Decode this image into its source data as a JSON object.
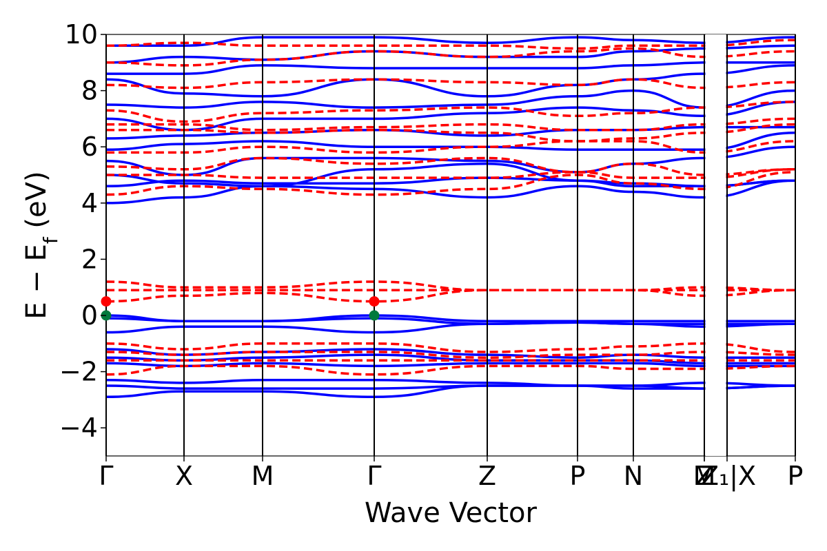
{
  "chart_data": {
    "type": "line",
    "xlabel": "Wave Vector",
    "ylabel": "E − E",
    "ylabel_sub": "f",
    "ylabel_unit": " (eV)",
    "ylim": [
      -5,
      10
    ],
    "yticks": [
      "−4",
      "−2",
      "0",
      "2",
      "4",
      "6",
      "8",
      "10"
    ],
    "ytick_values": [
      -4,
      -2,
      0,
      2,
      4,
      6,
      8,
      10
    ],
    "kpath": {
      "labels": [
        "Γ",
        "X",
        "M",
        "Γ",
        "Z",
        "P",
        "N",
        "Z",
        "M",
        "X",
        "P"
      ],
      "overlap_labels": [
        {
          "text": "Z₁|X",
          "at": 9
        }
      ],
      "positions": [
        0,
        0.113,
        0.227,
        0.389,
        0.553,
        0.684,
        0.765,
        0.868,
        0.868,
        0.901,
        1.0
      ],
      "break_after_index": 8
    },
    "series": [
      {
        "style": "solid",
        "color": "#0000ff"
      },
      {
        "style": "dashed",
        "color": "#ff0000"
      }
    ],
    "markers": [
      {
        "x": 0,
        "y": 0.5,
        "color": "#ff0000"
      },
      {
        "x": 0.389,
        "y": 0.5,
        "color": "#ff0000"
      },
      {
        "x": 0,
        "y": 0.0,
        "color": "#007a3d"
      },
      {
        "x": 0.389,
        "y": 0.0,
        "color": "#007a3d"
      }
    ],
    "blue_bands": [
      {
        "ys": [
          4.0,
          4.2,
          4.6,
          4.5,
          4.2,
          4.6,
          4.4,
          4.2,
          4.8
        ]
      },
      {
        "ys": [
          4.6,
          4.8,
          4.7,
          4.7,
          4.9,
          4.8,
          4.6,
          4.6,
          4.8
        ]
      },
      {
        "ys": [
          5.0,
          4.7,
          4.6,
          5.2,
          5.4,
          4.8,
          4.7,
          4.6,
          4.8
        ]
      },
      {
        "ys": [
          5.5,
          5.0,
          5.6,
          5.6,
          5.5,
          5.1,
          5.4,
          5.6,
          6.0
        ]
      },
      {
        "ys": [
          5.9,
          6.1,
          6.2,
          6.0,
          6.0,
          5.9,
          5.9,
          5.9,
          6.5
        ]
      },
      {
        "ys": [
          6.3,
          6.4,
          6.5,
          6.6,
          6.4,
          6.6,
          6.6,
          6.7,
          6.7
        ]
      },
      {
        "ys": [
          7.0,
          6.6,
          7.0,
          7.0,
          7.2,
          7.4,
          7.3,
          7.1,
          7.6
        ]
      },
      {
        "ys": [
          7.5,
          7.4,
          7.6,
          7.4,
          7.5,
          7.8,
          8.0,
          7.4,
          8.0
        ]
      },
      {
        "ys": [
          8.4,
          7.9,
          7.8,
          8.4,
          7.8,
          8.2,
          8.4,
          8.6,
          8.9
        ]
      },
      {
        "ys": [
          8.6,
          8.6,
          8.9,
          8.8,
          8.8,
          8.8,
          8.9,
          9.0,
          9.0
        ]
      },
      {
        "ys": [
          9.0,
          9.2,
          9.1,
          9.4,
          9.2,
          9.2,
          9.4,
          9.5,
          9.6
        ]
      },
      {
        "ys": [
          9.6,
          9.6,
          9.9,
          9.9,
          9.7,
          9.9,
          9.8,
          9.7,
          9.9
        ]
      },
      {
        "ys": [
          0.0,
          -0.2,
          -0.2,
          0.0,
          -0.2,
          -0.2,
          -0.2,
          -0.2,
          -0.2
        ]
      },
      {
        "ys": [
          -0.1,
          -0.2,
          -0.2,
          -0.1,
          -0.3,
          -0.25,
          -0.3,
          -0.3,
          -0.3
        ]
      },
      {
        "ys": [
          -0.6,
          -0.4,
          -0.4,
          -0.6,
          -0.3,
          -0.25,
          -0.3,
          -0.4,
          -0.3
        ]
      },
      {
        "ys": [
          -1.2,
          -1.4,
          -1.3,
          -1.2,
          -1.4,
          -1.5,
          -1.4,
          -1.5,
          -1.5
        ]
      },
      {
        "ys": [
          -1.5,
          -1.6,
          -1.5,
          -1.4,
          -1.6,
          -1.6,
          -1.6,
          -1.7,
          -1.7
        ]
      },
      {
        "ys": [
          -1.7,
          -1.8,
          -1.7,
          -1.8,
          -1.7,
          -1.7,
          -1.7,
          -1.8,
          -1.8
        ]
      },
      {
        "ys": [
          -2.3,
          -2.4,
          -2.3,
          -2.3,
          -2.4,
          -2.5,
          -2.5,
          -2.4,
          -2.5
        ]
      },
      {
        "ys": [
          -2.5,
          -2.6,
          -2.6,
          -2.6,
          -2.5,
          -2.5,
          -2.5,
          -2.6,
          -2.5
        ]
      },
      {
        "ys": [
          -2.9,
          -2.7,
          -2.7,
          -2.9,
          -2.5,
          -2.5,
          -2.6,
          -2.6,
          -2.5
        ]
      }
    ],
    "red_bands": [
      {
        "ys": [
          4.3,
          4.6,
          4.5,
          4.3,
          4.5,
          5.0,
          4.7,
          4.5,
          5.1
        ]
      },
      {
        "ys": [
          5.0,
          5.0,
          4.9,
          4.9,
          4.9,
          5.1,
          4.9,
          4.9,
          5.2
        ]
      },
      {
        "ys": [
          5.3,
          5.2,
          5.6,
          5.4,
          5.6,
          5.1,
          5.4,
          5.0,
          5.2
        ]
      },
      {
        "ys": [
          5.8,
          5.8,
          6.0,
          5.8,
          6.0,
          6.2,
          6.2,
          5.8,
          6.2
        ]
      },
      {
        "ys": [
          6.6,
          6.6,
          6.5,
          6.6,
          6.5,
          6.2,
          6.3,
          6.5,
          6.8
        ]
      },
      {
        "ys": [
          6.8,
          6.8,
          6.6,
          6.7,
          6.8,
          6.6,
          6.6,
          6.8,
          7.0
        ]
      },
      {
        "ys": [
          7.3,
          6.9,
          7.2,
          7.3,
          7.4,
          7.1,
          7.2,
          7.4,
          7.6
        ]
      },
      {
        "ys": [
          8.2,
          8.1,
          8.3,
          8.4,
          8.3,
          8.2,
          8.4,
          8.1,
          8.3
        ]
      },
      {
        "ys": [
          9.0,
          8.9,
          9.1,
          9.4,
          9.2,
          9.4,
          9.5,
          9.2,
          9.4
        ]
      },
      {
        "ys": [
          9.6,
          9.7,
          9.6,
          9.6,
          9.6,
          9.5,
          9.6,
          9.6,
          9.8
        ]
      },
      {
        "ys": [
          0.5,
          0.7,
          0.8,
          0.5,
          0.9,
          0.9,
          0.9,
          0.7,
          0.9
        ]
      },
      {
        "ys": [
          0.9,
          0.9,
          0.9,
          0.9,
          0.9,
          0.9,
          0.9,
          0.9,
          0.9
        ]
      },
      {
        "ys": [
          1.2,
          1.0,
          1.0,
          1.2,
          0.9,
          0.9,
          0.9,
          1.0,
          0.9
        ]
      },
      {
        "ys": [
          -1.0,
          -1.2,
          -1.0,
          -1.0,
          -1.3,
          -1.2,
          -1.1,
          -1.0,
          -1.3
        ]
      },
      {
        "ys": [
          -1.3,
          -1.4,
          -1.3,
          -1.3,
          -1.5,
          -1.4,
          -1.4,
          -1.3,
          -1.4
        ]
      },
      {
        "ys": [
          -1.6,
          -1.6,
          -1.6,
          -1.6,
          -1.6,
          -1.6,
          -1.6,
          -1.6,
          -1.6
        ]
      },
      {
        "ys": [
          -2.1,
          -1.8,
          -1.8,
          -2.1,
          -1.8,
          -1.8,
          -1.9,
          -1.9,
          -1.8
        ]
      }
    ]
  }
}
